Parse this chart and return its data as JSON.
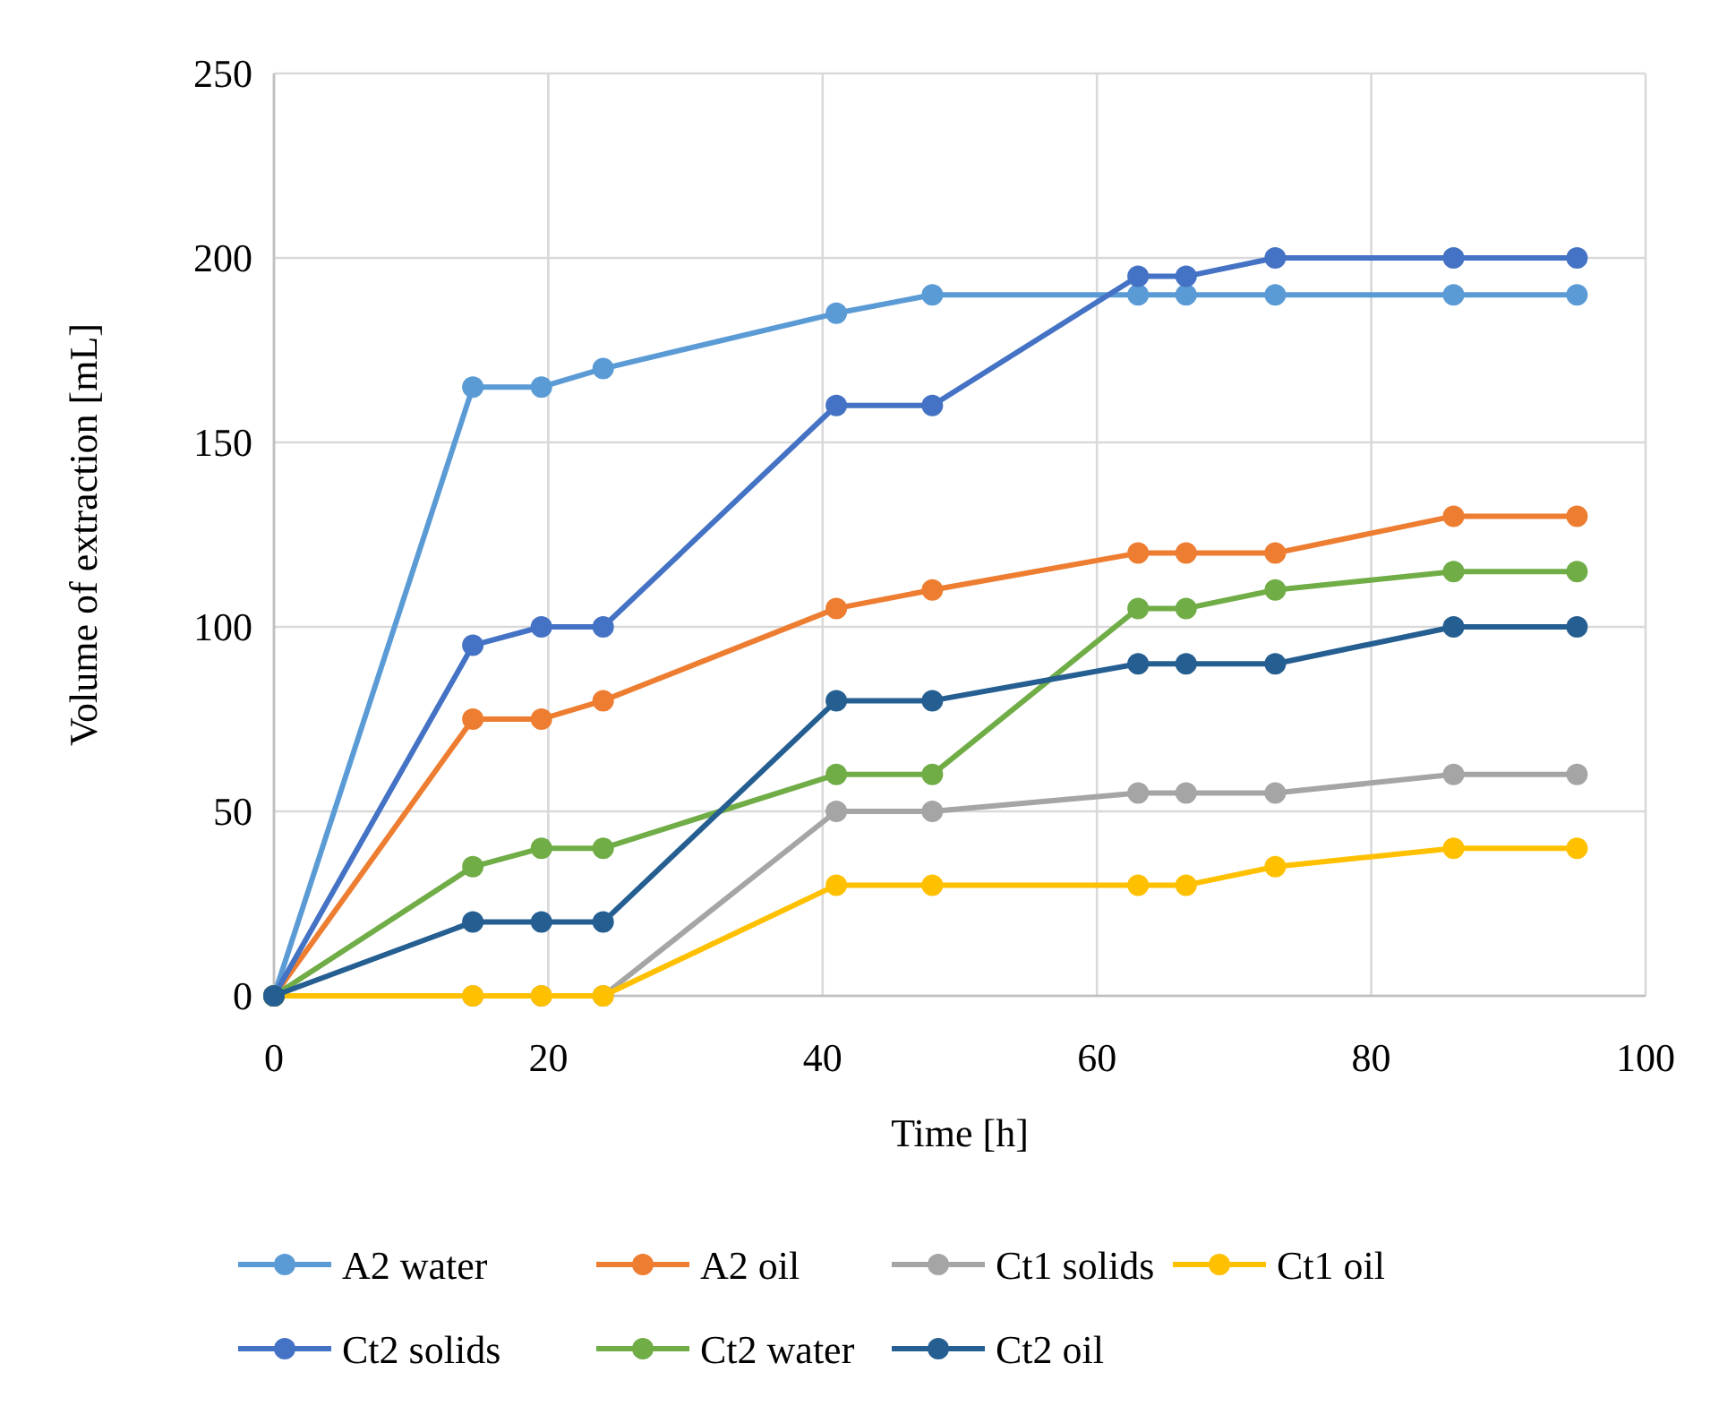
{
  "chart_data": {
    "type": "line",
    "xlabel": "Time [h]",
    "ylabel": "Volume of extraction [mL]",
    "x": [
      0,
      14.5,
      19.5,
      24,
      41,
      48,
      63,
      66.5,
      73,
      86,
      95
    ],
    "xlim": [
      0,
      100
    ],
    "xticks": [
      0,
      20,
      40,
      60,
      80,
      100
    ],
    "ylim": [
      0,
      250
    ],
    "yticks": [
      0,
      50,
      100,
      150,
      200,
      250
    ],
    "grid": true,
    "legend": "bottom",
    "marker": "circle",
    "line_style": "solid",
    "series": [
      {
        "name": "A2 water",
        "color": "#5b9bd5",
        "values": [
          0,
          165,
          165,
          170,
          185,
          190,
          190,
          190,
          190,
          190,
          190
        ]
      },
      {
        "name": "A2 oil",
        "color": "#ed7d31",
        "values": [
          0,
          75,
          75,
          80,
          105,
          110,
          120,
          120,
          120,
          130,
          130
        ]
      },
      {
        "name": "Ct1 solids",
        "color": "#a5a5a5",
        "values": [
          0,
          0,
          0,
          0,
          50,
          50,
          55,
          55,
          55,
          60,
          60
        ]
      },
      {
        "name": "Ct1 oil",
        "color": "#ffc000",
        "values": [
          0,
          0,
          0,
          0,
          30,
          30,
          30,
          30,
          35,
          40,
          40
        ]
      },
      {
        "name": "Ct2 solids",
        "color": "#4472c4",
        "values": [
          0,
          95,
          100,
          100,
          160,
          160,
          195,
          195,
          200,
          200,
          200
        ]
      },
      {
        "name": "Ct2 water",
        "color": "#70ad47",
        "values": [
          0,
          35,
          40,
          40,
          60,
          60,
          105,
          105,
          110,
          115,
          115
        ]
      },
      {
        "name": "Ct2 oil",
        "color": "#255e91",
        "values": [
          0,
          20,
          20,
          20,
          80,
          80,
          90,
          90,
          90,
          100,
          100
        ]
      }
    ]
  }
}
